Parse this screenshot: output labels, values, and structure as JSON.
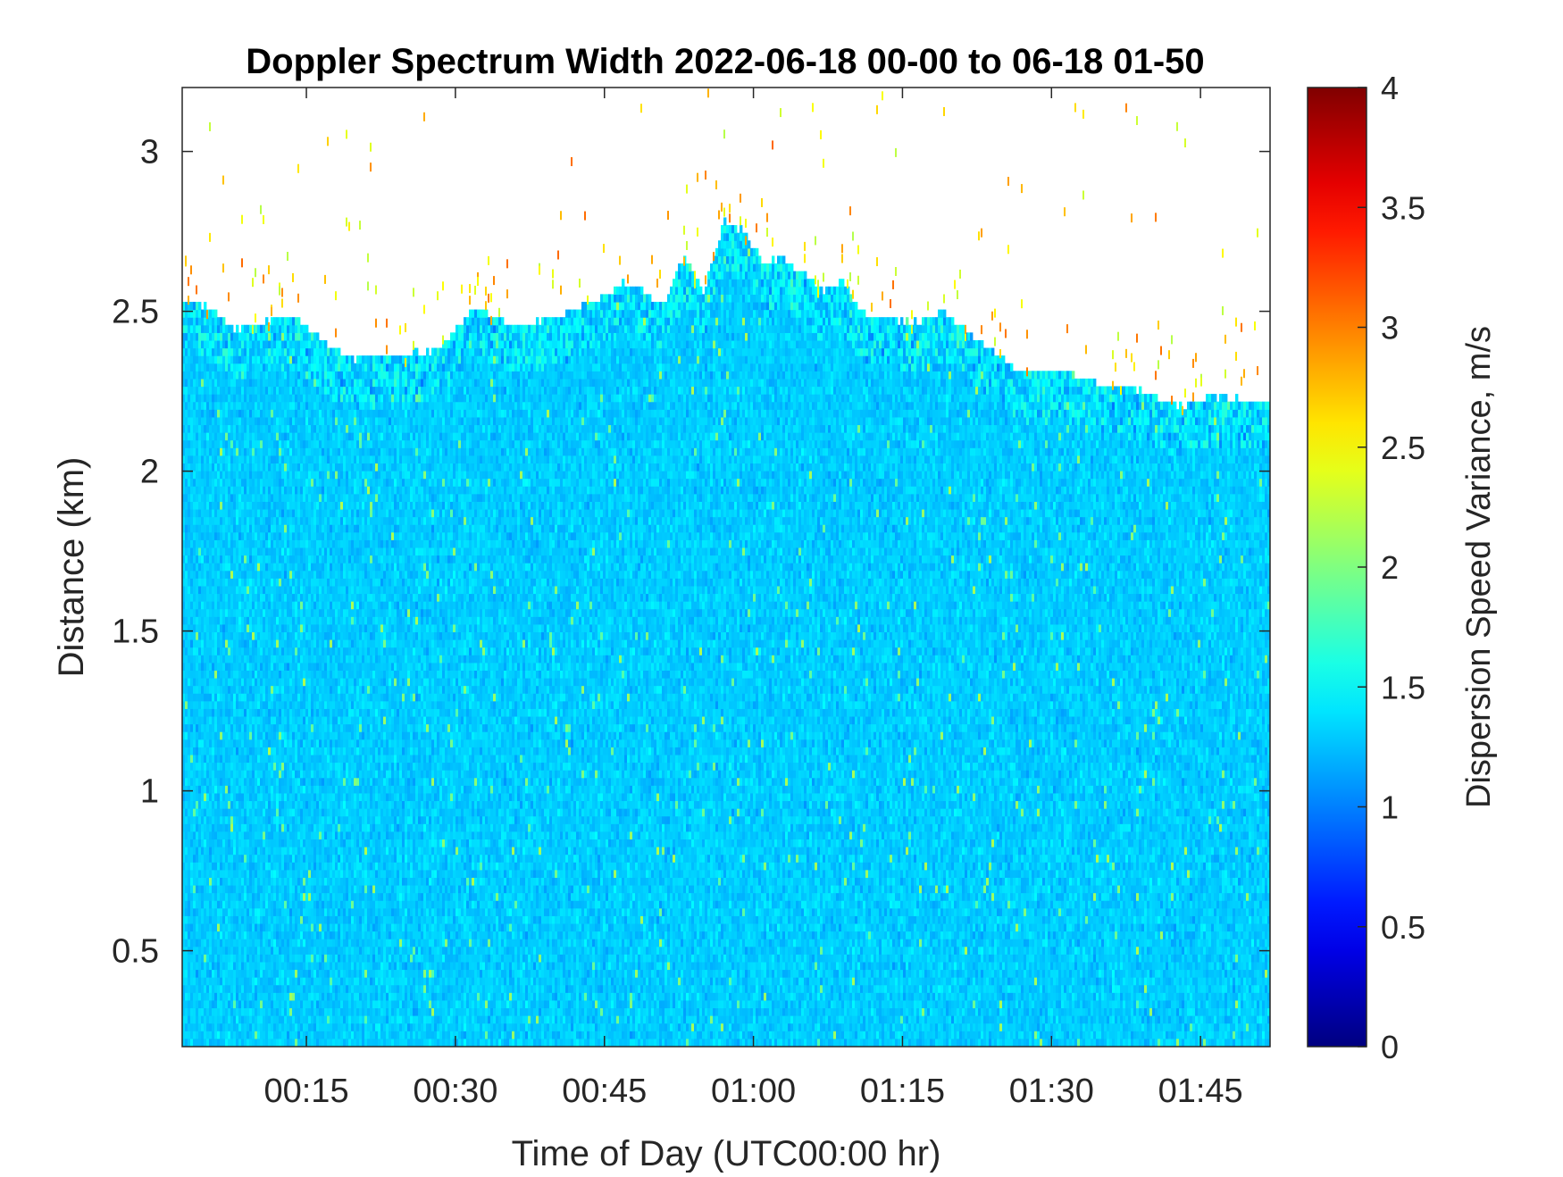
{
  "chart_data": {
    "type": "heatmap",
    "title": "Doppler Spectrum Width 2022-06-18 00-00 to 06-18 01-50",
    "xlabel": "Time of Day (UTC00:00 hr)",
    "ylabel": "Distance (km)",
    "colorbar_label": "Dispersion Speed Variance, m/s",
    "colormap": "jet",
    "x_unit": "minutes after 00:00 UTC",
    "xlim": [
      2.5,
      112
    ],
    "ylim": [
      0.2,
      3.2
    ],
    "clim": [
      0,
      4
    ],
    "x_ticks": [
      {
        "value": 15,
        "label": "00:15"
      },
      {
        "value": 30,
        "label": "00:30"
      },
      {
        "value": 45,
        "label": "00:45"
      },
      {
        "value": 60,
        "label": "01:00"
      },
      {
        "value": 75,
        "label": "01:15"
      },
      {
        "value": 90,
        "label": "01:30"
      },
      {
        "value": 105,
        "label": "01:45"
      }
    ],
    "y_ticks": [
      {
        "value": 0.5,
        "label": "0.5"
      },
      {
        "value": 1,
        "label": "1"
      },
      {
        "value": 1.5,
        "label": "1.5"
      },
      {
        "value": 2,
        "label": "2"
      },
      {
        "value": 2.5,
        "label": "2.5"
      },
      {
        "value": 3,
        "label": "3"
      }
    ],
    "colorbar_ticks": [
      {
        "value": 0,
        "label": "0"
      },
      {
        "value": 0.5,
        "label": "0.5"
      },
      {
        "value": 1,
        "label": "1"
      },
      {
        "value": 1.5,
        "label": "1.5"
      },
      {
        "value": 2,
        "label": "2"
      },
      {
        "value": 2.5,
        "label": "2.5"
      },
      {
        "value": 3,
        "label": "3"
      },
      {
        "value": 3.5,
        "label": "3.5"
      },
      {
        "value": 4,
        "label": "4"
      }
    ],
    "typical_value": 1.3,
    "value_spread": 0.25,
    "signal_top_profile": {
      "time": [
        2.5,
        5,
        8,
        11,
        14,
        17,
        20,
        24,
        28,
        32,
        36,
        40,
        44,
        47,
        49,
        51,
        53,
        55,
        57,
        59,
        61,
        63,
        65,
        67,
        69,
        71,
        73,
        76,
        79,
        82,
        84,
        87,
        91,
        95,
        99,
        103,
        107,
        112
      ],
      "height_km": [
        2.52,
        2.5,
        2.43,
        2.46,
        2.47,
        2.38,
        2.34,
        2.35,
        2.36,
        2.5,
        2.44,
        2.47,
        2.52,
        2.58,
        2.55,
        2.51,
        2.66,
        2.55,
        2.77,
        2.74,
        2.64,
        2.65,
        2.61,
        2.55,
        2.58,
        2.48,
        2.47,
        2.45,
        2.48,
        2.41,
        2.37,
        2.29,
        2.3,
        2.26,
        2.24,
        2.19,
        2.22,
        2.2
      ]
    }
  }
}
